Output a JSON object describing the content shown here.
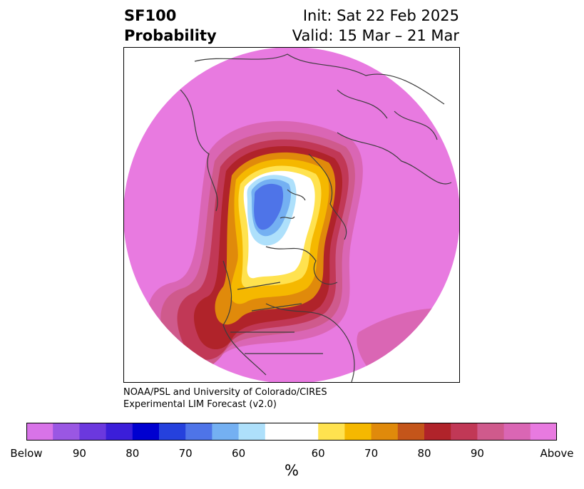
{
  "title": {
    "left_line1": "SF100",
    "left_line2": "Probability",
    "right_line1": "Init: Sat 22 Feb 2025",
    "right_line2": "Valid: 15 Mar – 21 Mar"
  },
  "credit": {
    "line1": "NOAA/PSL and University of Colorado/CIRES",
    "line2": "Experimental LIM Forecast (v2.0)"
  },
  "colorbar": {
    "unit": "%",
    "tick_labels": [
      "Below",
      "90",
      "80",
      "70",
      "60",
      "60",
      "70",
      "80",
      "90",
      "Above"
    ],
    "colors": [
      "#d873e8",
      "#9a57e3",
      "#6b38de",
      "#3b1ed9",
      "#0000d0",
      "#2541dd",
      "#4e74e8",
      "#74b0f2",
      "#aee0fb",
      "#ffffff",
      "#ffe24f",
      "#f5b800",
      "#e08a0b",
      "#c4551a",
      "#b0232a",
      "#c13856",
      "#cf5a8c",
      "#da66b4",
      "#e87ae0"
    ]
  },
  "map": {
    "colors": {
      "above": "#e87ae0",
      "a90": "#da66b4",
      "a85": "#cf5a8c",
      "a80": "#c13856",
      "a75": "#b0232a",
      "a70": "#c4551a",
      "a65": "#e08a0b",
      "a60": "#f5b800",
      "a55": "#ffe24f",
      "neutral": "#ffffff",
      "b55": "#aee0fb",
      "b60": "#74b0f2",
      "b65": "#4e74e8",
      "coast": "#3c3c3c"
    }
  }
}
